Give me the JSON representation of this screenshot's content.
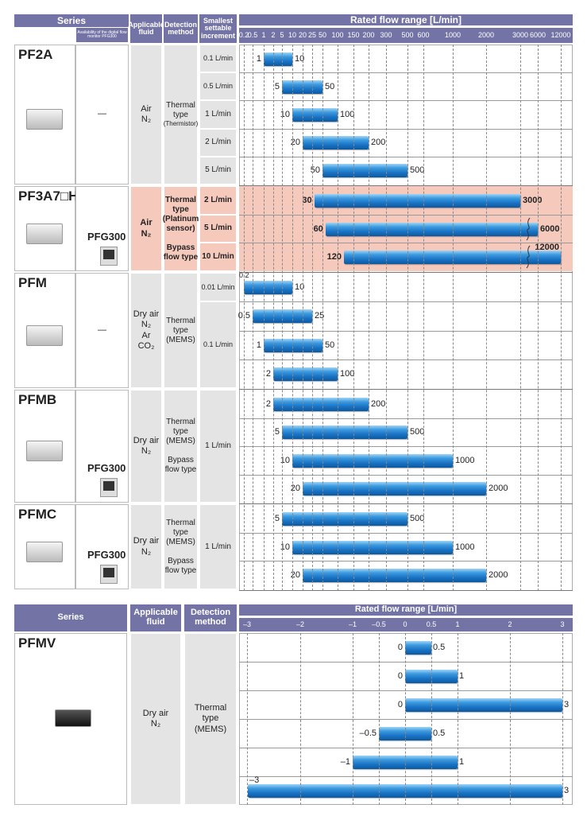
{
  "top_table": {
    "headers": {
      "series": "Series",
      "pfg": "Availability of the digital flow monitor PFG300",
      "fluid": "Applicable fluid",
      "method": "Detection method",
      "increment": "Smallest settable increment",
      "range": "Rated flow range [L/min]"
    },
    "series": [
      {
        "name": "PF2A",
        "pfg": "—",
        "fluid": "Air\nN₂",
        "method": "Thermal\ntype",
        "method_sub": "(Thermistor)",
        "highlight": false,
        "increments": [
          {
            "label": "0.1 L/min",
            "rows": 1
          },
          {
            "label": "0.5 L/min",
            "rows": 1
          },
          {
            "label": "1 L/min",
            "rows": 1
          },
          {
            "label": "2 L/min",
            "rows": 1
          },
          {
            "label": "5 L/min",
            "rows": 1
          }
        ],
        "ranges": [
          [
            "1",
            "10"
          ],
          [
            "5",
            "50"
          ],
          [
            "10",
            "100"
          ],
          [
            "20",
            "200"
          ],
          [
            "50",
            "500"
          ]
        ]
      },
      {
        "name": "PF3A7□H",
        "pfg": "PFG300",
        "fluid": "Air\nN₂",
        "method": "Thermal\ntype\n(Platinum\nsensor)\n\nBypass\nflow type",
        "method_sub": "",
        "highlight": true,
        "increments": [
          {
            "label": "2 L/min",
            "rows": 1
          },
          {
            "label": "5 L/min",
            "rows": 1
          },
          {
            "label": "10 L/min",
            "rows": 1
          }
        ],
        "ranges": [
          [
            "30",
            "3000"
          ],
          [
            "60",
            "6000"
          ],
          [
            "120",
            "12000"
          ]
        ]
      },
      {
        "name": "PFM",
        "pfg": "—",
        "fluid": "Dry air\nN₂\nAr\nCO₂",
        "method": "Thermal\ntype\n(MEMS)",
        "method_sub": "",
        "highlight": false,
        "increments": [
          {
            "label": "0.01 L/min",
            "rows": 1
          },
          {
            "label": "0.1 L/min",
            "rows": 3
          }
        ],
        "ranges": [
          [
            "0.2",
            "10"
          ],
          [
            "0.5",
            "25"
          ],
          [
            "1",
            "50"
          ],
          [
            "2",
            "100"
          ]
        ]
      },
      {
        "name": "PFMB",
        "pfg": "PFG300",
        "fluid": "Dry air\nN₂",
        "method": "Thermal\ntype\n(MEMS)\n\nBypass\nflow type",
        "method_sub": "",
        "highlight": false,
        "increments": [
          {
            "label": "1 L/min",
            "rows": 4
          }
        ],
        "ranges": [
          [
            "2",
            "200"
          ],
          [
            "5",
            "500"
          ],
          [
            "10",
            "1000"
          ],
          [
            "20",
            "2000"
          ]
        ]
      },
      {
        "name": "PFMC",
        "pfg": "PFG300",
        "fluid": "Dry air\nN₂",
        "method": "Thermal\ntype\n(MEMS)\n\nBypass\nflow type",
        "method_sub": "",
        "highlight": false,
        "increments": [
          {
            "label": "1 L/min",
            "rows": 3
          }
        ],
        "ranges": [
          [
            "5",
            "500"
          ],
          [
            "10",
            "1000"
          ],
          [
            "20",
            "2000"
          ]
        ]
      }
    ]
  },
  "bottom_table": {
    "headers": {
      "series": "Series",
      "fluid": "Applicable fluid",
      "method": "Detection method",
      "range": "Rated flow range [L/min]"
    },
    "series": {
      "name": "PFMV",
      "fluid": "Dry air\nN₂",
      "method": "Thermal type\n(MEMS)",
      "ranges": [
        [
          "0",
          "0.5"
        ],
        [
          "0",
          "1"
        ],
        [
          "0",
          "3"
        ],
        [
          "–0.5",
          "0.5"
        ],
        [
          "–1",
          "1"
        ],
        [
          "–3",
          "3"
        ]
      ]
    }
  },
  "chart_data": [
    {
      "type": "bar",
      "orientation": "horizontal-range",
      "xlabel": "Rated flow range [L/min]",
      "x_ticks": [
        "0.2",
        "0.5",
        "1",
        "2",
        "5",
        "10",
        "20",
        "25",
        "50",
        "100",
        "150",
        "200",
        "300",
        "500",
        "600",
        "1000",
        "2000",
        "3000",
        "6000",
        "12000"
      ],
      "grid": "vertical dashed",
      "axis_broken_after": "3000"
    },
    {
      "type": "bar",
      "orientation": "horizontal-range",
      "xlabel": "Rated flow range [L/min]",
      "x_ticks": [
        "–3",
        "–2",
        "–1",
        "–0.5",
        "0",
        "0.5",
        "1",
        "2",
        "3"
      ],
      "xlim": [
        -3,
        3
      ],
      "grid": "vertical dashed"
    }
  ],
  "colors": {
    "header": "#7373a6",
    "bar": "#1a73c4",
    "highlight": "#f6c9bd",
    "cell": "#e4e4e4"
  }
}
